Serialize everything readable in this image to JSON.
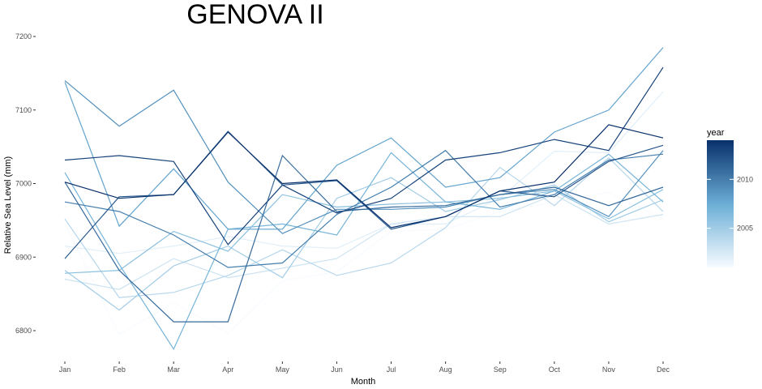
{
  "chart_data": {
    "type": "line",
    "title": "GENOVA II",
    "xlabel": "Month",
    "ylabel": "Relative Sea Level (mm)",
    "categories": [
      "Jan",
      "Feb",
      "Mar",
      "Apr",
      "May",
      "Jun",
      "Jul",
      "Aug",
      "Sep",
      "Oct",
      "Nov",
      "Dec"
    ],
    "y_ticks": [
      6800,
      6900,
      7000,
      7100,
      7200
    ],
    "ylim": [
      6765,
      7210
    ],
    "grid": false,
    "legend": {
      "title": "year",
      "position": "right",
      "labels": [
        2005,
        2010
      ],
      "range": [
        2001,
        2014
      ],
      "color_low": "#f7fbff",
      "color_high": "#08306b"
    },
    "series": [
      {
        "year": 2001,
        "values": [
          6945,
          6795,
          6838,
          6796,
          6868,
          6880,
          6935,
          6938,
          6962,
          6975,
          6988,
          6952
        ]
      },
      {
        "year": 2002,
        "values": [
          6915,
          6905,
          6915,
          6928,
          6915,
          6912,
          6945,
          6945,
          6980,
          7044,
          7042,
          7125
        ]
      },
      {
        "year": 2003,
        "values": [
          6870,
          6856,
          6898,
          6872,
          6885,
          6898,
          6945,
          6955,
          6955,
          6985,
          6945,
          6958
        ]
      },
      {
        "year": 2004,
        "values": [
          6952,
          6845,
          6852,
          6875,
          6910,
          6875,
          6892,
          6940,
          7022,
          6970,
          7035,
          6962
        ]
      },
      {
        "year": 2005,
        "values": [
          6882,
          6828,
          6888,
          6915,
          6872,
          6980,
          7008,
          6962,
          6978,
          6998,
          6948,
          6978
        ]
      },
      {
        "year": 2006,
        "values": [
          6878,
          6882,
          6935,
          6908,
          6985,
          6968,
          6972,
          6975,
          6980,
          6990,
          6952,
          6992
        ]
      },
      {
        "year": 2007,
        "values": [
          7015,
          6890,
          6775,
          6938,
          6945,
          6930,
          7042,
          6975,
          6965,
          6990,
          7040,
          6975
        ]
      },
      {
        "year": 2008,
        "values": [
          7138,
          6942,
          7020,
          6938,
          6938,
          7025,
          7062,
          6995,
          7008,
          7070,
          7100,
          7185
        ]
      },
      {
        "year": 2009,
        "values": [
          7140,
          7078,
          7127,
          7002,
          6932,
          6965,
          6965,
          6968,
          6985,
          6992,
          6955,
          7045
        ]
      },
      {
        "year": 2010,
        "values": [
          6975,
          6962,
          6930,
          6886,
          6892,
          6958,
          6995,
          7045,
          6968,
          6985,
          7032,
          7040
        ]
      },
      {
        "year": 2011,
        "values": [
          7002,
          6882,
          6812,
          6812,
          7038,
          6962,
          6968,
          6970,
          6985,
          6995,
          6970,
          6995
        ]
      },
      {
        "year": 2012,
        "values": [
          6898,
          6982,
          6985,
          7071,
          6998,
          7004,
          6938,
          6955,
          6990,
          6982,
          7030,
          7052
        ]
      },
      {
        "year": 2013,
        "values": [
          7032,
          7038,
          7030,
          6917,
          6998,
          6960,
          6980,
          7032,
          7042,
          7060,
          7045,
          7158
        ]
      },
      {
        "year": 2014,
        "values": [
          7002,
          6980,
          6985,
          7070,
          7000,
          7005,
          6940,
          6955,
          6990,
          7002,
          7080,
          7062
        ]
      }
    ]
  }
}
